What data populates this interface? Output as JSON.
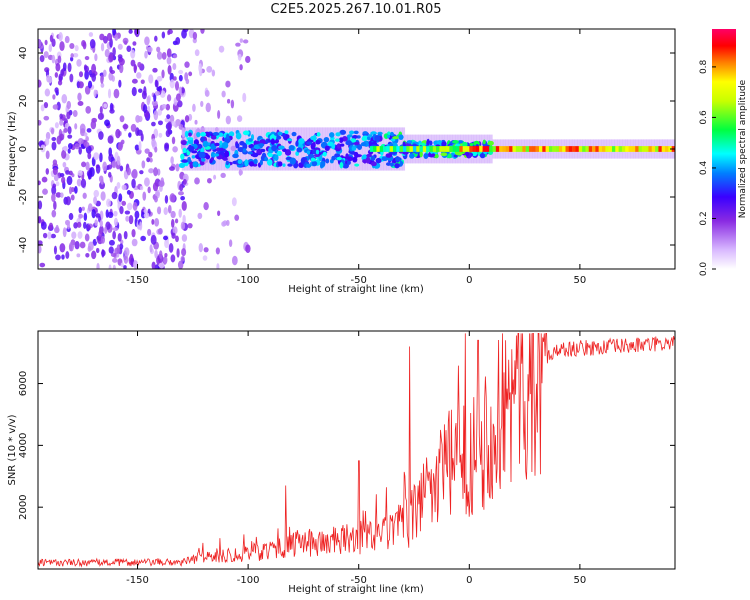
{
  "title": "C2E5.2025.267.10.01.R05",
  "colors": {
    "snr_line": "#ee2222",
    "axis": "#000000"
  },
  "chart_data": [
    {
      "type": "heatmap",
      "name": "spectrogram",
      "xlabel": "Height of straight line (km)",
      "ylabel": "Frequency (Hz)",
      "xlim": [
        -195,
        93
      ],
      "ylim": [
        -50,
        50
      ],
      "xticks": [
        -150,
        -100,
        -50,
        0,
        50
      ],
      "xtick_labels": [
        "-150",
        "-100",
        "-50",
        "0",
        "50"
      ],
      "yticks": [
        -40,
        -20,
        0,
        20,
        40
      ],
      "ytick_labels": [
        "-40",
        "-20",
        "0",
        "20",
        "40"
      ],
      "colorbar": {
        "label": "Normalized spectral amplitude",
        "range": [
          0,
          0.95
        ],
        "ticks": [
          0.0,
          0.2,
          0.4,
          0.6,
          0.8
        ],
        "tick_labels": [
          "0.0",
          "0.2",
          "0.4",
          "0.6",
          "0.8"
        ]
      },
      "description_points": {
        "noise_region_x": [
          -195,
          -100
        ],
        "signal_onset_x": -130,
        "tone_center_hz": 0
      }
    },
    {
      "type": "line",
      "name": "snr",
      "xlabel": "Height of straight line (km)",
      "ylabel": "SNR (10 * v/v)",
      "xlim": [
        -195,
        93
      ],
      "ylim": [
        0,
        7700
      ],
      "xticks": [
        -150,
        -100,
        -50,
        0,
        50
      ],
      "xtick_labels": [
        "-150",
        "-100",
        "-50",
        "0",
        "50"
      ],
      "yticks": [
        2000,
        4000,
        6000
      ],
      "ytick_labels": [
        "2000",
        "4000",
        "6000"
      ],
      "envelope": [
        {
          "x": -195,
          "y": 200
        },
        {
          "x": -130,
          "y": 220
        },
        {
          "x": -120,
          "y": 400
        },
        {
          "x": -100,
          "y": 500
        },
        {
          "x": -80,
          "y": 800
        },
        {
          "x": -60,
          "y": 900
        },
        {
          "x": -40,
          "y": 1100
        },
        {
          "x": -27,
          "y": 1500
        },
        {
          "x": -20,
          "y": 2500
        },
        {
          "x": -10,
          "y": 3300
        },
        {
          "x": 0,
          "y": 3700
        },
        {
          "x": 10,
          "y": 4500
        },
        {
          "x": 20,
          "y": 5600
        },
        {
          "x": 30,
          "y": 6600
        },
        {
          "x": 40,
          "y": 7100
        },
        {
          "x": 93,
          "y": 7300
        }
      ],
      "spikes": [
        {
          "x": -27,
          "y": 7200
        },
        {
          "x": 4,
          "y": 7400
        },
        {
          "x": -83,
          "y": 2700
        },
        {
          "x": -50,
          "y": 3500
        }
      ]
    }
  ]
}
